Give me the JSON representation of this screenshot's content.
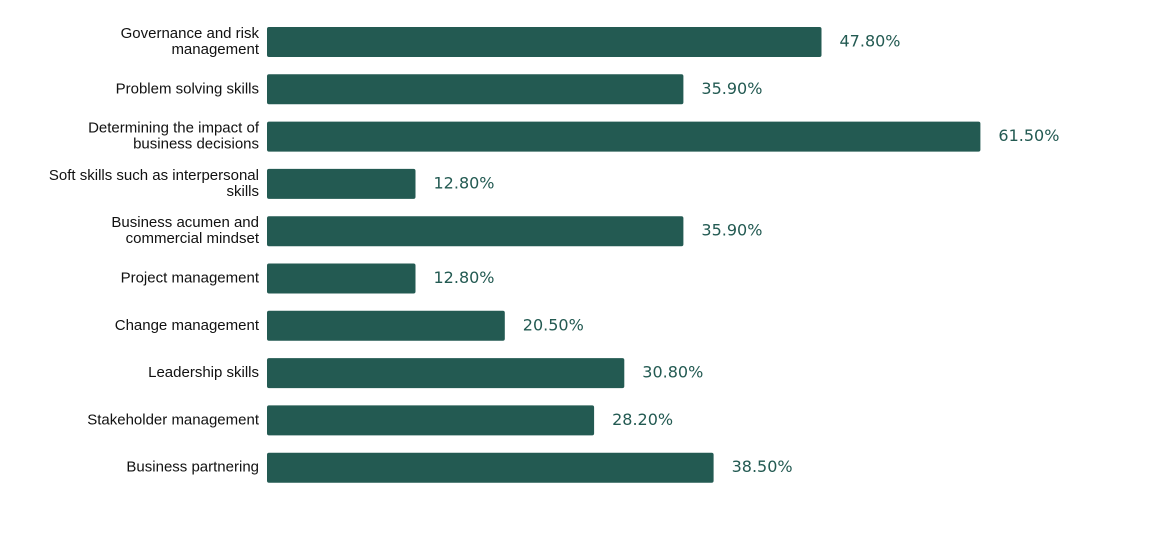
{
  "chart_data": {
    "type": "bar",
    "orientation": "horizontal",
    "title": "",
    "xlabel": "",
    "ylabel": "",
    "categories": [
      [
        "Governance and risk",
        "management"
      ],
      [
        "Problem solving skills"
      ],
      [
        "Determining the impact of",
        "business decisions"
      ],
      [
        "Soft skills such as interpersonal",
        "skills"
      ],
      [
        "Business acumen and",
        "commercial mindset"
      ],
      [
        "Project management"
      ],
      [
        "Change management"
      ],
      [
        "Leadership skills"
      ],
      [
        "Stakeholder management"
      ],
      [
        "Business partnering"
      ]
    ],
    "values": [
      47.8,
      35.9,
      61.5,
      12.8,
      35.9,
      12.8,
      20.5,
      30.8,
      28.2,
      38.5
    ],
    "value_labels": [
      "47.80%",
      "35.90%",
      "61.50%",
      "12.80%",
      "35.90%",
      "12.80%",
      "20.50%",
      "30.80%",
      "28.20%",
      "38.50%"
    ],
    "xlim": [
      0,
      100
    ],
    "grid": false,
    "legend": "none",
    "colors": {
      "bar": "#235a52",
      "value_label": "#235a52",
      "category_label": "#111111"
    }
  }
}
